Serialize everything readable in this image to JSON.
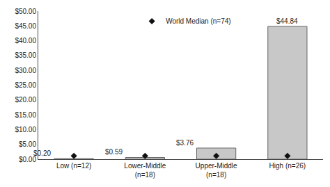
{
  "chart_data": {
    "type": "bar",
    "categories": [
      "Low (n=12)",
      "Lower-Middle\n(n=18)",
      "Upper-Middle\n(n=18)",
      "High (n=26)"
    ],
    "series": [
      {
        "type": "bar",
        "color": "#c8c8c8",
        "values": [
          0.2,
          0.59,
          3.76,
          44.84
        ],
        "value_labels": [
          "$0.20",
          "$0.59",
          "$3.76",
          "$44.84"
        ]
      },
      {
        "name": "World Median (n=74)",
        "type": "scatter",
        "marker": "diamond",
        "color": "#111111",
        "values": [
          1.1,
          1.1,
          1.1,
          1.1
        ]
      }
    ],
    "data_labels": true,
    "ylim": [
      0,
      50
    ],
    "yticks": [
      {
        "value": 0,
        "label": "$0.00"
      },
      {
        "value": 5,
        "label": "$5.00"
      },
      {
        "value": 10,
        "label": "$10.00"
      },
      {
        "value": 15,
        "label": "$15.00"
      },
      {
        "value": 20,
        "label": "$20.00"
      },
      {
        "value": 25,
        "label": "$25.00"
      },
      {
        "value": 30,
        "label": "$30.00"
      },
      {
        "value": 35,
        "label": "$35.00"
      },
      {
        "value": 40,
        "label": "$40.00"
      },
      {
        "value": 45,
        "label": "$45.00"
      },
      {
        "value": 50,
        "label": "$50.00"
      }
    ],
    "grid": false,
    "legend": "top"
  }
}
